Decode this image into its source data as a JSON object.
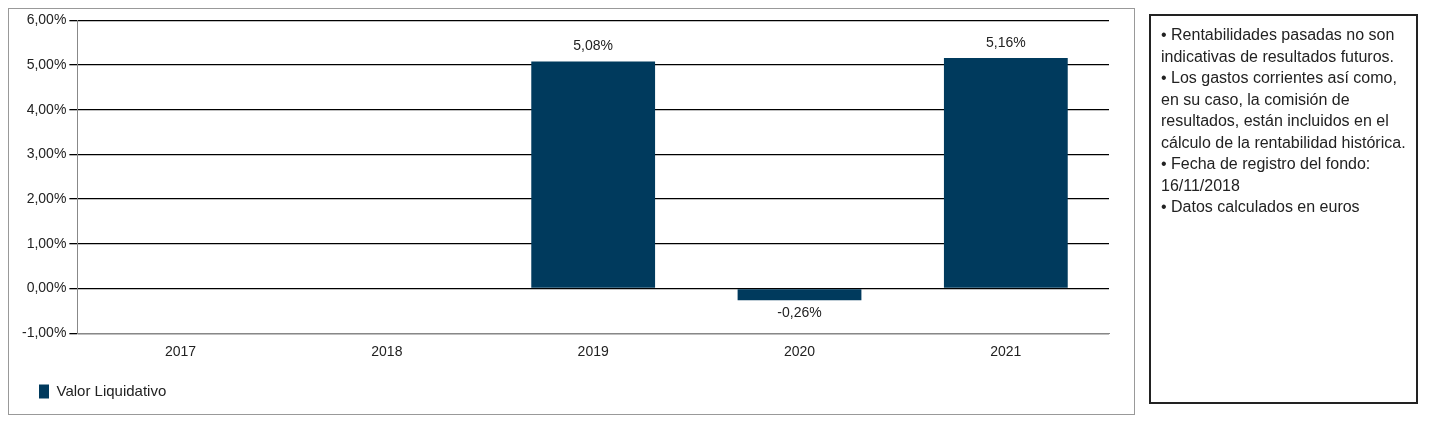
{
  "chart_data": {
    "type": "bar",
    "categories": [
      "2017",
      "2018",
      "2019",
      "2020",
      "2021"
    ],
    "series": [
      {
        "name": "Valor Liquidativo",
        "color": "#003a5d",
        "values": [
          null,
          null,
          5.08,
          -0.26,
          5.16
        ]
      }
    ],
    "value_labels": [
      null,
      null,
      "5,08%",
      "-0,26%",
      "5,16%"
    ],
    "ylim": [
      -1,
      6
    ],
    "yticks": [
      {
        "value": -1,
        "label": "-1,00%"
      },
      {
        "value": 0,
        "label": "0,00%"
      },
      {
        "value": 1,
        "label": "1,00%"
      },
      {
        "value": 2,
        "label": "2,00%"
      },
      {
        "value": 3,
        "label": "3,00%"
      },
      {
        "value": 4,
        "label": "4,00%"
      },
      {
        "value": 5,
        "label": "5,00%"
      },
      {
        "value": 6,
        "label": "6,00%"
      }
    ],
    "grid": "y",
    "legend": "bottom",
    "annotations": [
      "• Rentabilidades pasadas no son indicativas de resultados futuros.",
      "• Los gastos corrientes así como, en su caso, la comisión de resultados, están incluidos en el cálculo de la rentabilidad histórica.",
      "• Fecha de registro del fondo: 16/11/2018",
      "• Datos calculados en euros"
    ]
  }
}
